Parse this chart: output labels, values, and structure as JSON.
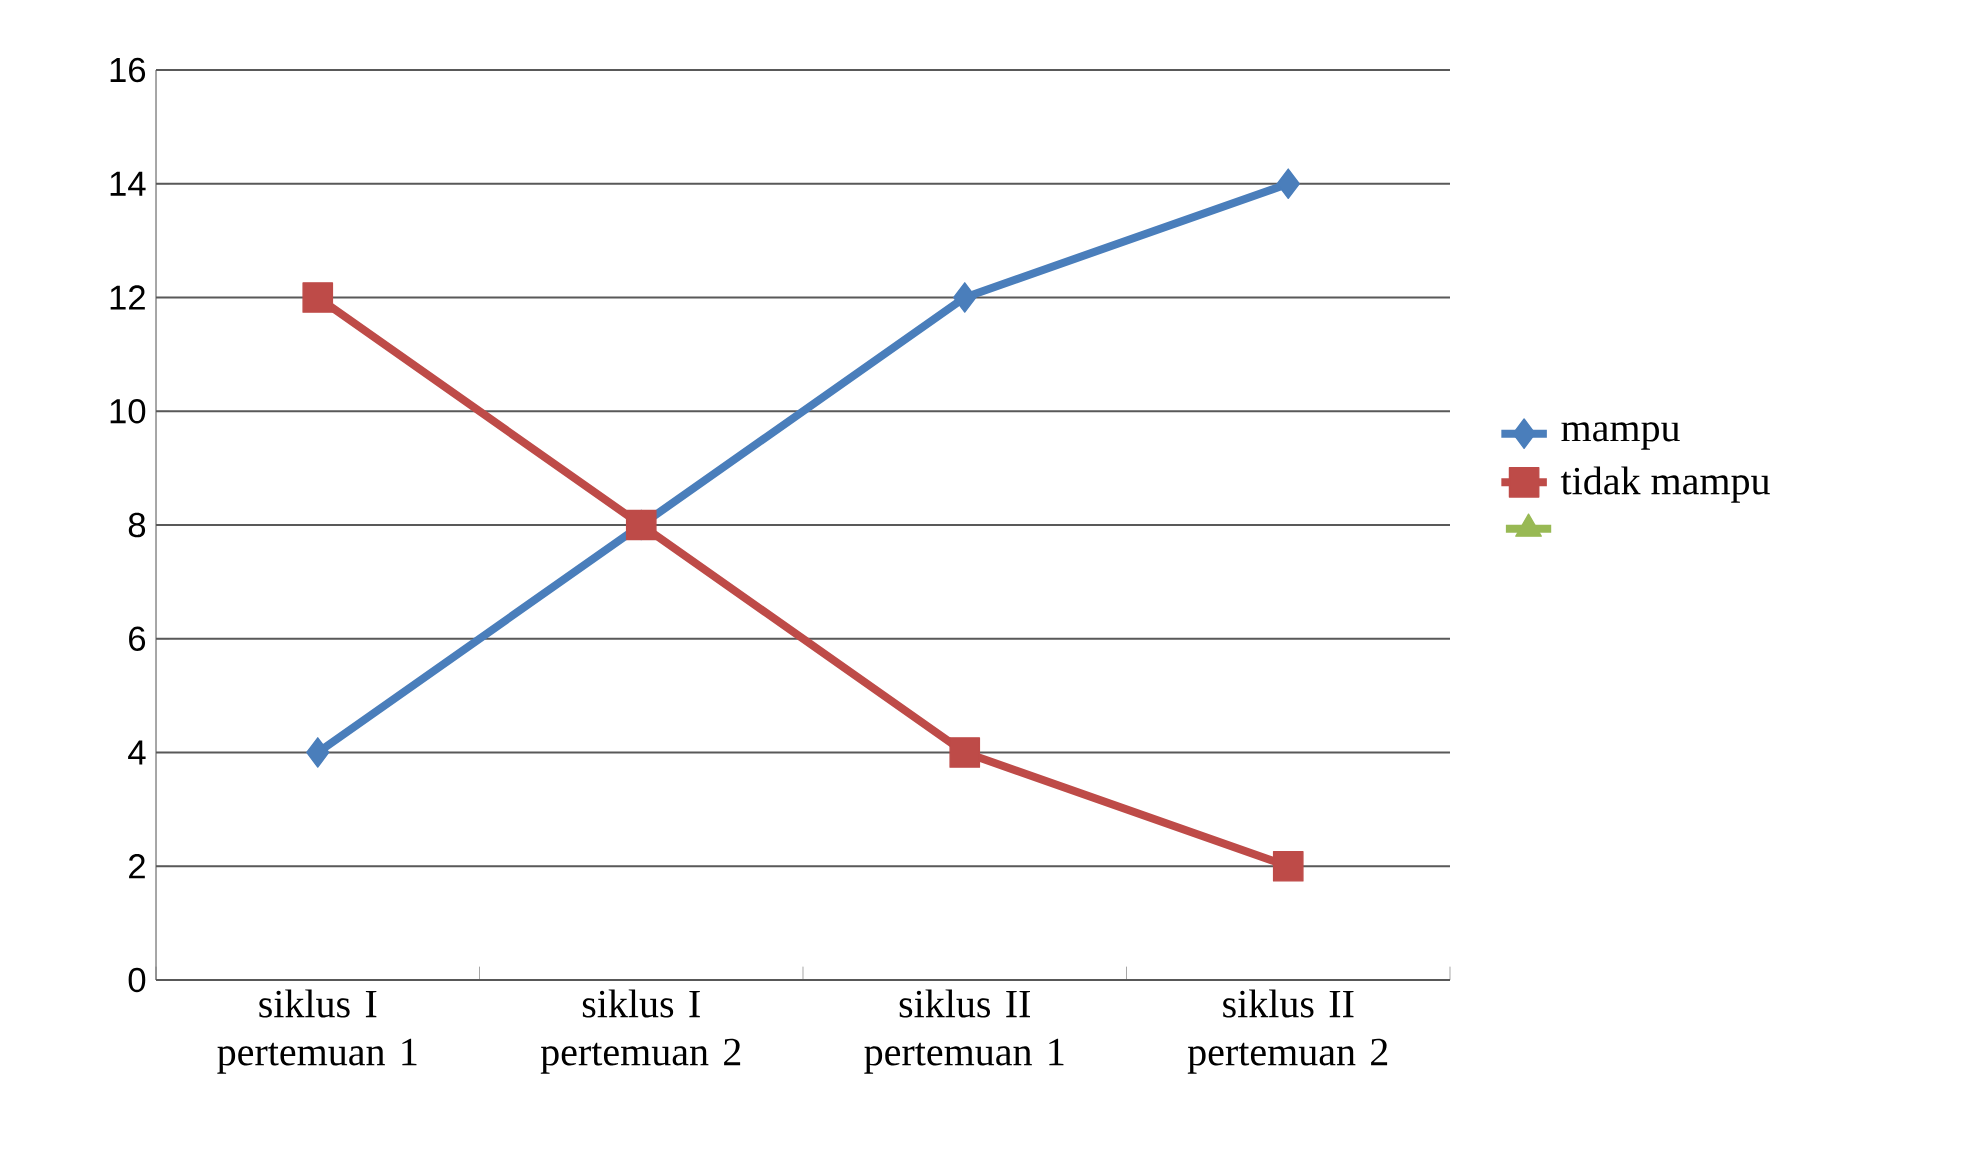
{
  "chart_data": {
    "type": "line",
    "categories": [
      "siklus I pertemuan 1",
      "siklus I pertemuan 2",
      "siklus II pertemuan 1",
      "siklus II pertemuan 2"
    ],
    "series": [
      {
        "name": "mampu",
        "color": "#4a7ebb",
        "marker": "diamond",
        "values": [
          4,
          8,
          12,
          14
        ]
      },
      {
        "name": "tidak mampu",
        "color": "#be4b48",
        "marker": "square",
        "values": [
          12,
          8,
          4,
          2
        ]
      },
      {
        "color": "#98b954",
        "marker": "triangle",
        "values": [
          null,
          null,
          null,
          null
        ]
      }
    ],
    "ylim": [
      0,
      16
    ],
    "yticks": [
      0,
      2,
      4,
      6,
      8,
      10,
      12,
      14,
      16
    ],
    "grid": "y",
    "legend": "right",
    "line_style": "solid"
  }
}
